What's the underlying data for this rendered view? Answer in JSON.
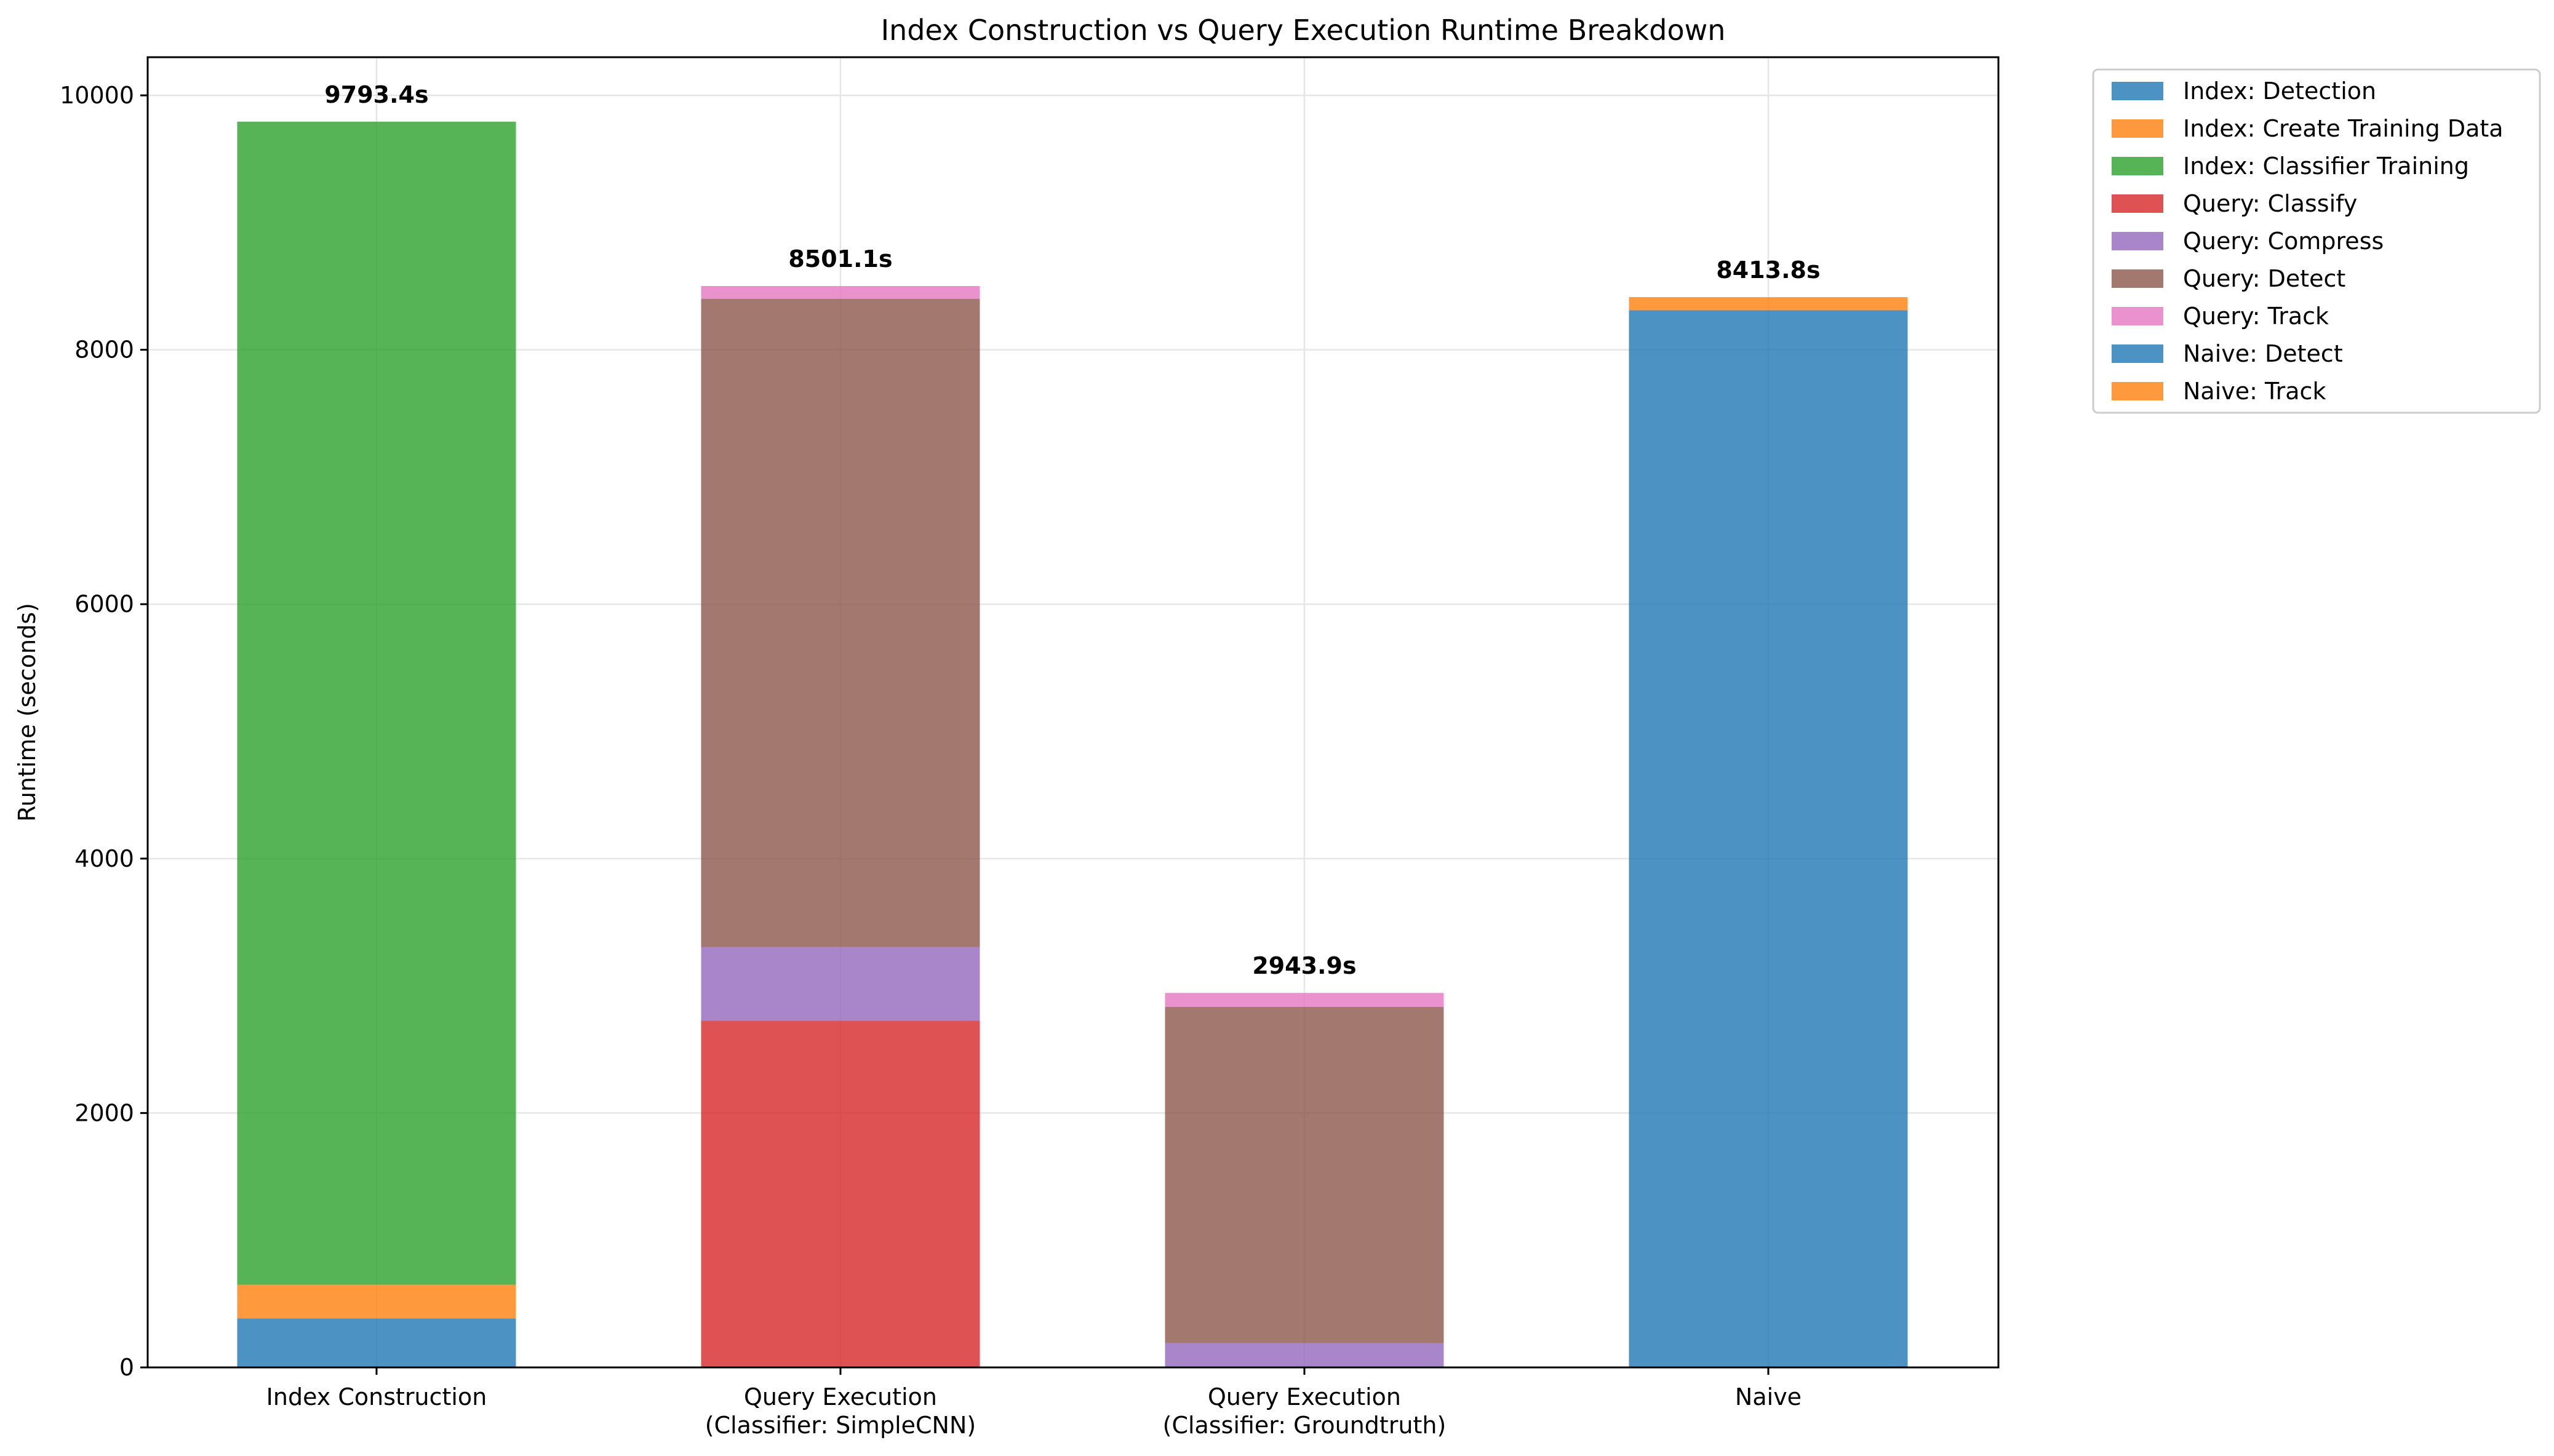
{
  "chart_data": {
    "type": "bar",
    "stacked": true,
    "title": "Index Construction vs Query Execution Runtime Breakdown",
    "xlabel": "",
    "ylabel": "Runtime (seconds)",
    "ylim": [
      0,
      10300
    ],
    "yticks": [
      0,
      2000,
      4000,
      6000,
      8000,
      10000
    ],
    "grid": true,
    "legend_position": "outside-top-right",
    "categories": [
      [
        "Index Construction"
      ],
      [
        "Query Execution",
        "(Classifier: SimpleCNN)"
      ],
      [
        "Query Execution",
        "(Classifier: Groundtruth)"
      ],
      [
        "Naive"
      ]
    ],
    "totals": [
      "9793.4s",
      "8501.1s",
      "2943.9s",
      "8413.8s"
    ],
    "series": [
      {
        "name": "Index: Detection",
        "color": "#1f77b4",
        "values": [
          385,
          0,
          0,
          0
        ]
      },
      {
        "name": "Index: Create Training Data",
        "color": "#ff7f0e",
        "values": [
          265,
          0,
          0,
          0
        ]
      },
      {
        "name": "Index: Classifier Training",
        "color": "#2ca02c",
        "values": [
          9143.4,
          0,
          0,
          0
        ]
      },
      {
        "name": "Query: Classify",
        "color": "#d62728",
        "values": [
          0,
          2725,
          0,
          0
        ]
      },
      {
        "name": "Query: Compress",
        "color": "#9467bd",
        "values": [
          0,
          580,
          190,
          0
        ]
      },
      {
        "name": "Query: Detect",
        "color": "#8c564b",
        "values": [
          0,
          5096.1,
          2643.9,
          0
        ]
      },
      {
        "name": "Query: Track",
        "color": "#e377c2",
        "values": [
          0,
          100,
          110,
          0
        ]
      },
      {
        "name": "Naive: Detect",
        "color": "#1f77b4",
        "values": [
          0,
          0,
          0,
          8310
        ]
      },
      {
        "name": "Naive: Track",
        "color": "#ff7f0e",
        "values": [
          0,
          0,
          0,
          103.8
        ]
      }
    ]
  }
}
